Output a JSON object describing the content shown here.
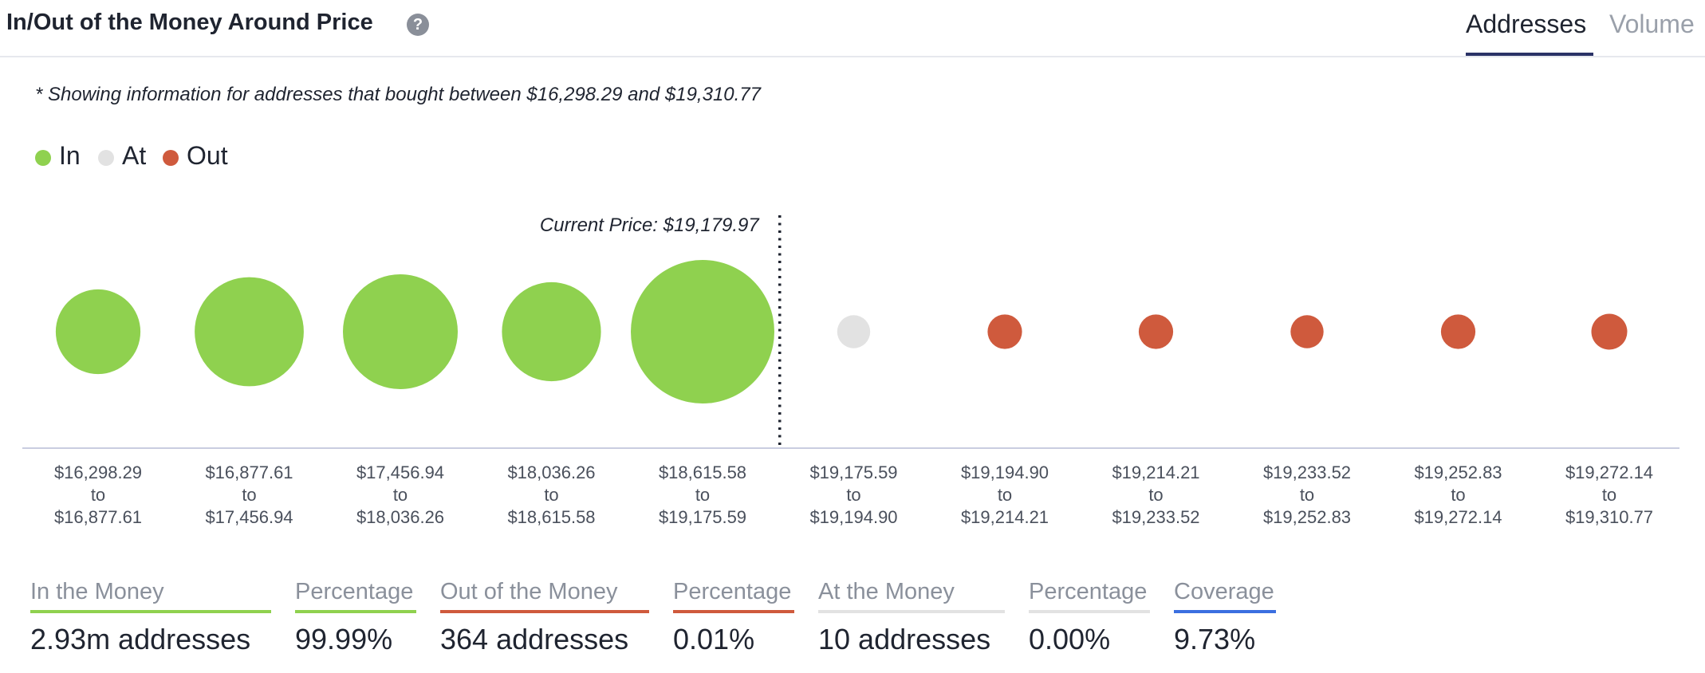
{
  "header": {
    "title": "In/Out of the Money Around Price",
    "help_icon": "question-circle-icon",
    "tabs": [
      {
        "label": "Addresses",
        "active": true
      },
      {
        "label": "Volume",
        "active": false
      }
    ]
  },
  "note": "* Showing information for addresses that bought between $16,298.29 and $19,310.77",
  "legend": [
    {
      "label": "In",
      "color": "#8fd14f"
    },
    {
      "label": "At",
      "color": "#e2e2e2"
    },
    {
      "label": "Out",
      "color": "#cf5a3d"
    }
  ],
  "colors": {
    "in": "#8fd14f",
    "at": "#e2e2e2",
    "out": "#cf5a3d",
    "coverage": "#3b6fe0",
    "axis": "#c9cde0"
  },
  "chart_data": {
    "type": "bubble",
    "current_price_label": "Current Price: $19,179.97",
    "current_price_after_index": 4,
    "categories": [
      {
        "from": "$16,298.29",
        "to_word": "to",
        "to": "$16,877.61",
        "status": "in",
        "relative_size": 0.59
      },
      {
        "from": "$16,877.61",
        "to_word": "to",
        "to": "$17,456.94",
        "status": "in",
        "relative_size": 0.76
      },
      {
        "from": "$17,456.94",
        "to_word": "to",
        "to": "$18,036.26",
        "status": "in",
        "relative_size": 0.8
      },
      {
        "from": "$18,036.26",
        "to_word": "to",
        "to": "$18,615.58",
        "status": "in",
        "relative_size": 0.69
      },
      {
        "from": "$18,615.58",
        "to_word": "to",
        "to": "$19,175.59",
        "status": "in",
        "relative_size": 1.0
      },
      {
        "from": "$19,175.59",
        "to_word": "to",
        "to": "$19,194.90",
        "status": "at",
        "relative_size": 0.23
      },
      {
        "from": "$19,194.90",
        "to_word": "to",
        "to": "$19,214.21",
        "status": "out",
        "relative_size": 0.24
      },
      {
        "from": "$19,214.21",
        "to_word": "to",
        "to": "$19,233.52",
        "status": "out",
        "relative_size": 0.24
      },
      {
        "from": "$19,233.52",
        "to_word": "to",
        "to": "$19,252.83",
        "status": "out",
        "relative_size": 0.23
      },
      {
        "from": "$19,252.83",
        "to_word": "to",
        "to": "$19,272.14",
        "status": "out",
        "relative_size": 0.24
      },
      {
        "from": "$19,272.14",
        "to_word": "to",
        "to": "$19,310.77",
        "status": "out",
        "relative_size": 0.25
      }
    ]
  },
  "stats": [
    {
      "label": "In the Money",
      "value": "2.93m addresses",
      "color": "#8fd14f"
    },
    {
      "label": "Percentage",
      "value": "99.99%",
      "color": "#8fd14f"
    },
    {
      "label": "Out of the Money",
      "value": "364 addresses",
      "color": "#cf5a3d"
    },
    {
      "label": "Percentage",
      "value": "0.01%",
      "color": "#cf5a3d"
    },
    {
      "label": "At the Money",
      "value": "10 addresses",
      "color": "#e2e2e2"
    },
    {
      "label": "Percentage",
      "value": "0.00%",
      "color": "#e2e2e2"
    },
    {
      "label": "Coverage",
      "value": "9.73%",
      "color": "#3b6fe0"
    }
  ]
}
